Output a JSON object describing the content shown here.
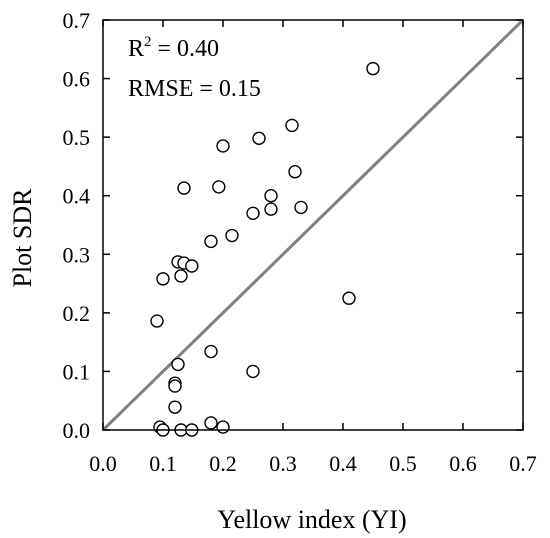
{
  "chart_data": {
    "type": "scatter",
    "title": "",
    "xlabel": "Yellow index (YI)",
    "ylabel": "Plot SDR",
    "xlim": [
      0,
      0.7
    ],
    "ylim": [
      0,
      0.7
    ],
    "xticks": [
      "0.0",
      "0.1",
      "0.2",
      "0.3",
      "0.4",
      "0.5",
      "0.6",
      "0.7"
    ],
    "yticks": [
      "0.0",
      "0.1",
      "0.2",
      "0.3",
      "0.4",
      "0.5",
      "0.6",
      "0.7"
    ],
    "grid": false,
    "annotations": {
      "r2_label": "R",
      "r2_superscript": "2",
      "r2_value": " = 0.40",
      "rmse": "RMSE = 0.15"
    },
    "reference_line": {
      "type": "1:1",
      "color": "#808080"
    },
    "marker": {
      "shape": "open-circle",
      "color": "#000000"
    },
    "series": [
      {
        "points": [
          [
            0.45,
            0.617
          ],
          [
            0.315,
            0.52
          ],
          [
            0.26,
            0.498
          ],
          [
            0.2,
            0.485
          ],
          [
            0.32,
            0.441
          ],
          [
            0.135,
            0.413
          ],
          [
            0.193,
            0.415
          ],
          [
            0.28,
            0.4
          ],
          [
            0.33,
            0.38
          ],
          [
            0.28,
            0.377
          ],
          [
            0.25,
            0.37
          ],
          [
            0.215,
            0.332
          ],
          [
            0.18,
            0.322
          ],
          [
            0.125,
            0.287
          ],
          [
            0.135,
            0.285
          ],
          [
            0.148,
            0.28
          ],
          [
            0.13,
            0.263
          ],
          [
            0.1,
            0.258
          ],
          [
            0.41,
            0.225
          ],
          [
            0.09,
            0.186
          ],
          [
            0.18,
            0.134
          ],
          [
            0.125,
            0.112
          ],
          [
            0.25,
            0.1
          ],
          [
            0.12,
            0.08
          ],
          [
            0.12,
            0.075
          ],
          [
            0.12,
            0.039
          ],
          [
            0.18,
            0.012
          ],
          [
            0.2,
            0.005
          ],
          [
            0.095,
            0.005
          ],
          [
            0.1,
            0.0
          ],
          [
            0.13,
            0.0
          ],
          [
            0.148,
            0.0
          ]
        ]
      }
    ]
  }
}
